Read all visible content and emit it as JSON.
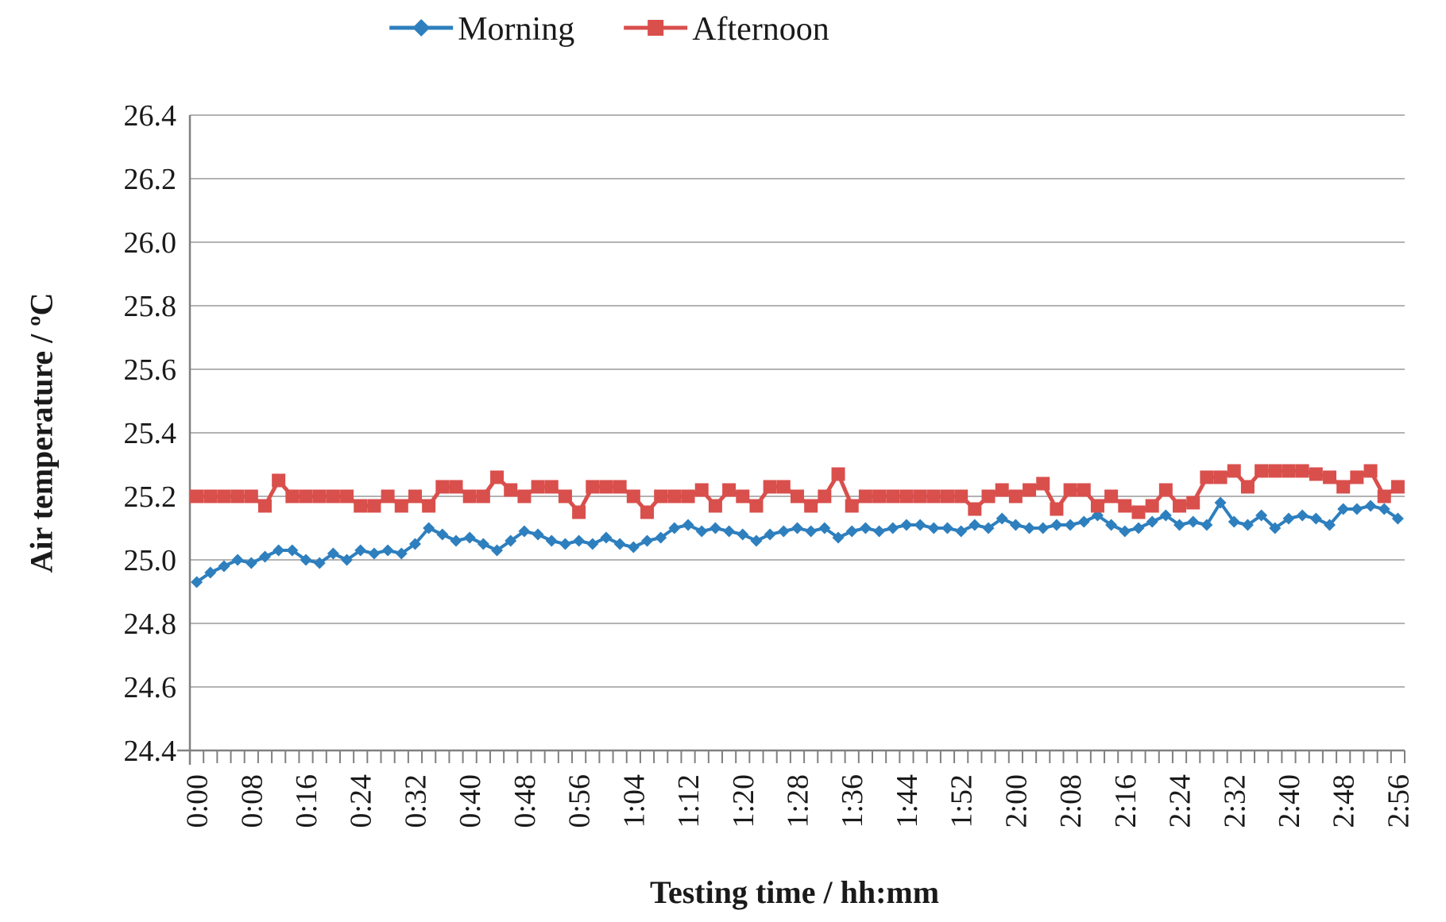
{
  "chart_data": {
    "type": "line",
    "title": "",
    "xlabel": "Testing time / hh:mm",
    "ylabel": "Air temperature / ºC",
    "ylim": [
      24.4,
      26.4
    ],
    "ytick_step": 0.2,
    "yticks": [
      "24.4",
      "24.6",
      "24.8",
      "25.0",
      "25.2",
      "25.4",
      "25.6",
      "25.8",
      "26.0",
      "26.2",
      "26.4"
    ],
    "grid": "horizontal-only",
    "legend_position": "top-center",
    "x_tick_label_every": 4,
    "x_major_tick_labels": [
      "0:00",
      "0:08",
      "0:16",
      "0:24",
      "0:32",
      "0:40",
      "0:48",
      "0:56",
      "1:04",
      "1:12",
      "1:20",
      "1:28",
      "1:36",
      "1:44",
      "1:52",
      "2:00",
      "2:08",
      "2:16",
      "2:24",
      "2:32",
      "2:40",
      "2:48",
      "2:56"
    ],
    "x": [
      "0:00",
      "0:02",
      "0:04",
      "0:06",
      "0:08",
      "0:10",
      "0:12",
      "0:14",
      "0:16",
      "0:18",
      "0:20",
      "0:22",
      "0:24",
      "0:26",
      "0:28",
      "0:30",
      "0:32",
      "0:34",
      "0:36",
      "0:38",
      "0:40",
      "0:42",
      "0:44",
      "0:46",
      "0:48",
      "0:50",
      "0:52",
      "0:54",
      "0:56",
      "0:58",
      "1:00",
      "1:02",
      "1:04",
      "1:06",
      "1:08",
      "1:10",
      "1:12",
      "1:14",
      "1:16",
      "1:18",
      "1:20",
      "1:22",
      "1:24",
      "1:26",
      "1:28",
      "1:30",
      "1:32",
      "1:34",
      "1:36",
      "1:38",
      "1:40",
      "1:42",
      "1:44",
      "1:46",
      "1:48",
      "1:50",
      "1:52",
      "1:54",
      "1:56",
      "1:58",
      "2:00",
      "2:02",
      "2:04",
      "2:06",
      "2:08",
      "2:10",
      "2:12",
      "2:14",
      "2:16",
      "2:18",
      "2:20",
      "2:22",
      "2:24",
      "2:26",
      "2:28",
      "2:30",
      "2:32",
      "2:34",
      "2:36",
      "2:38",
      "2:40",
      "2:42",
      "2:44",
      "2:46",
      "2:48",
      "2:50",
      "2:52",
      "2:54",
      "2:56"
    ],
    "series": [
      {
        "name": "Morning",
        "color": "#2E7FBE",
        "marker": "diamond",
        "values": [
          24.93,
          24.96,
          24.98,
          25.0,
          24.99,
          25.01,
          25.03,
          25.03,
          25.0,
          24.99,
          25.02,
          25.0,
          25.03,
          25.02,
          25.03,
          25.02,
          25.05,
          25.1,
          25.08,
          25.06,
          25.07,
          25.05,
          25.03,
          25.06,
          25.09,
          25.08,
          25.06,
          25.05,
          25.06,
          25.05,
          25.07,
          25.05,
          25.04,
          25.06,
          25.07,
          25.1,
          25.11,
          25.09,
          25.1,
          25.09,
          25.08,
          25.06,
          25.08,
          25.09,
          25.1,
          25.09,
          25.1,
          25.07,
          25.09,
          25.1,
          25.09,
          25.1,
          25.11,
          25.11,
          25.1,
          25.1,
          25.09,
          25.11,
          25.1,
          25.13,
          25.11,
          25.1,
          25.1,
          25.11,
          25.11,
          25.12,
          25.14,
          25.11,
          25.09,
          25.1,
          25.12,
          25.14,
          25.11,
          25.12,
          25.11,
          25.18,
          25.12,
          25.11,
          25.14,
          25.1,
          25.13,
          25.14,
          25.13,
          25.11,
          25.16,
          25.16,
          25.17,
          25.16,
          25.13
        ]
      },
      {
        "name": "Afternoon",
        "color": "#D94F4C",
        "marker": "square",
        "values": [
          25.2,
          25.2,
          25.2,
          25.2,
          25.2,
          25.17,
          25.25,
          25.2,
          25.2,
          25.2,
          25.2,
          25.2,
          25.17,
          25.17,
          25.2,
          25.17,
          25.2,
          25.17,
          25.23,
          25.23,
          25.2,
          25.2,
          25.26,
          25.22,
          25.2,
          25.23,
          25.23,
          25.2,
          25.15,
          25.23,
          25.23,
          25.23,
          25.2,
          25.15,
          25.2,
          25.2,
          25.2,
          25.22,
          25.17,
          25.22,
          25.2,
          25.17,
          25.23,
          25.23,
          25.2,
          25.17,
          25.2,
          25.27,
          25.17,
          25.2,
          25.2,
          25.2,
          25.2,
          25.2,
          25.2,
          25.2,
          25.2,
          25.16,
          25.2,
          25.22,
          25.2,
          25.22,
          25.24,
          25.16,
          25.22,
          25.22,
          25.17,
          25.2,
          25.17,
          25.15,
          25.17,
          25.22,
          25.17,
          25.18,
          25.26,
          25.26,
          25.28,
          25.23,
          25.28,
          25.28,
          25.28,
          25.28,
          25.27,
          25.26,
          25.23,
          25.26,
          25.28,
          25.2,
          25.23
        ]
      }
    ],
    "axis_color": "#808080",
    "gridline_color": "#9a9a9a"
  }
}
